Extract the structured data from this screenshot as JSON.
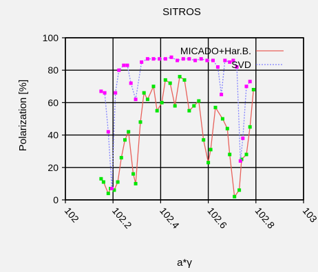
{
  "chart_data": {
    "type": "line",
    "title": "SITROS",
    "xlabel": "a*γ",
    "ylabel": "Polarization [%]",
    "xlim": [
      102,
      103
    ],
    "ylim": [
      0,
      100
    ],
    "x_ticks": [
      "102",
      "102.2",
      "102.4",
      "102.6",
      "102.8",
      "103"
    ],
    "y_ticks": [
      "0",
      "20",
      "40",
      "60",
      "80",
      "100"
    ],
    "grid": true,
    "legend_position": "top-right",
    "series": [
      {
        "name": "MICADO+Har.B.",
        "color": "#e8605a",
        "marker_color": "#00e600",
        "style": "solid",
        "x": [
          102.15,
          102.16,
          102.18,
          102.19,
          102.205,
          102.22,
          102.235,
          102.25,
          102.265,
          102.285,
          102.295,
          102.315,
          102.33,
          102.345,
          102.37,
          102.385,
          102.405,
          102.42,
          102.44,
          102.46,
          102.48,
          102.5,
          102.52,
          102.54,
          102.56,
          102.58,
          102.6,
          102.61,
          102.63,
          102.66,
          102.68,
          102.69,
          102.71,
          102.73,
          102.74,
          102.76,
          102.775,
          102.79
        ],
        "y": [
          13,
          11,
          4,
          7,
          6,
          11,
          26,
          37,
          42,
          16,
          10,
          48,
          66,
          62,
          70,
          55,
          60,
          74,
          72,
          58,
          76,
          74,
          55,
          58,
          61,
          37,
          23,
          31,
          57,
          50,
          44,
          28,
          2,
          6,
          25,
          28,
          45,
          68
        ]
      },
      {
        "name": "SVD",
        "color": "#8080ff",
        "marker_color": "#ff00ff",
        "style": "dotted",
        "x": [
          102.15,
          102.165,
          102.18,
          102.195,
          102.21,
          102.225,
          102.245,
          102.26,
          102.275,
          102.295,
          102.32,
          102.345,
          102.37,
          102.395,
          102.42,
          102.445,
          102.47,
          102.495,
          102.52,
          102.545,
          102.57,
          102.595,
          102.62,
          102.64,
          102.655,
          102.67,
          102.69,
          102.705,
          102.72,
          102.735,
          102.745,
          102.76,
          102.775
        ],
        "y": [
          67,
          66,
          42,
          7,
          66,
          80,
          83,
          83,
          72,
          62,
          85,
          87,
          87,
          87,
          87,
          88,
          86,
          87,
          87,
          86,
          87,
          86,
          86,
          82,
          65,
          86,
          85,
          86,
          82,
          24,
          38,
          70,
          73
        ]
      }
    ]
  }
}
